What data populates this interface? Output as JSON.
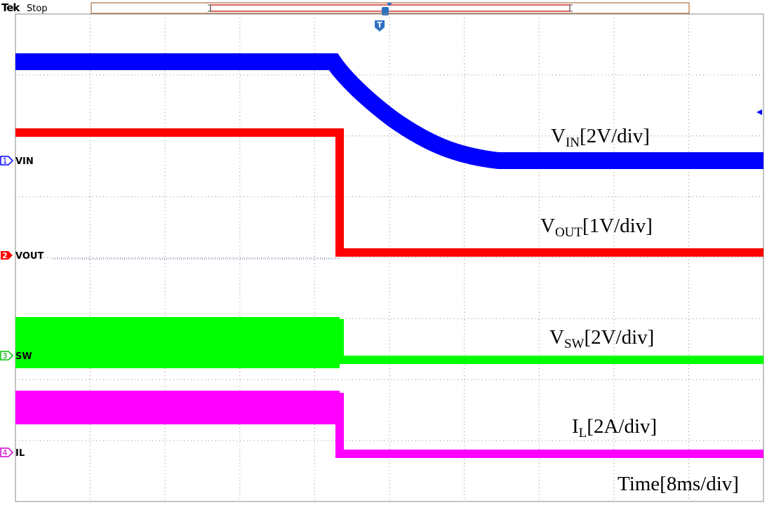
{
  "header": {
    "brand": "Tek",
    "status": "Stop"
  },
  "trigger": "T",
  "channels": [
    {
      "number": "1",
      "label": "VIN"
    },
    {
      "number": "2",
      "label": "VOUT"
    },
    {
      "number": "3",
      "label": "SW"
    },
    {
      "number": "4",
      "label": "IL"
    }
  ],
  "annotations": [
    {
      "symbol": "V",
      "subscript": "IN",
      "scale": "[2V/div]"
    },
    {
      "symbol": "V",
      "subscript": "OUT",
      "scale": "[1V/div]"
    },
    {
      "symbol": "V",
      "subscript": "SW",
      "scale": "[2V/div]"
    },
    {
      "symbol": "I",
      "subscript": "L",
      "scale": "[2A/div]"
    }
  ],
  "time_scale": "Time[8ms/div]"
}
